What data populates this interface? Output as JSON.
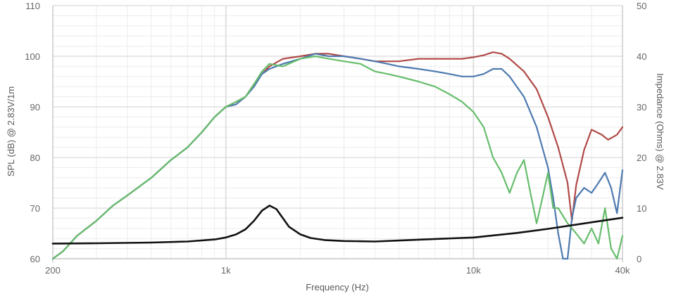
{
  "chart_data": {
    "type": "line",
    "xlabel": "Frequency (Hz)",
    "ylabel": "SPL (dB) @ 2.83V/1m",
    "y2label": "Impedance (Ohms) @ 2.83V",
    "x_scale": "log",
    "xlim": [
      200,
      40000
    ],
    "ylim": [
      60,
      110
    ],
    "y2lim": [
      0,
      50
    ],
    "grid": true,
    "legend": "none",
    "x_ticks": [
      {
        "value": 200,
        "label": "200"
      },
      {
        "value": 1000,
        "label": "1k"
      },
      {
        "value": 10000,
        "label": "10k"
      },
      {
        "value": 40000,
        "label": "40k"
      }
    ],
    "y_ticks": [
      "60",
      "70",
      "80",
      "90",
      "100",
      "110"
    ],
    "y2_ticks": [
      "0",
      "10",
      "20",
      "30",
      "40",
      "50"
    ],
    "colors": {
      "red": "#b04a48",
      "blue": "#4d7aaf",
      "green": "#66bd6c",
      "impedance": "#111111",
      "grid_major": "#d9d9d9",
      "grid_minor": "#ececec",
      "axis": "#bfbfbf"
    },
    "series": [
      {
        "color": "red",
        "axis": "left",
        "x": [
          200,
          220,
          250,
          300,
          350,
          400,
          500,
          600,
          700,
          800,
          900,
          1000,
          1100,
          1200,
          1300,
          1400,
          1500,
          1700,
          2000,
          2300,
          2600,
          3000,
          3500,
          4000,
          4500,
          5000,
          6000,
          7000,
          8000,
          9000,
          10000,
          11000,
          12000,
          13000,
          14000,
          16000,
          18000,
          20000,
          22000,
          24000,
          25000,
          26000,
          28000,
          30000,
          33000,
          35000,
          38000,
          40000
        ],
        "y": [
          59.5,
          61.5,
          64.5,
          67.5,
          70.5,
          72.5,
          76,
          79.5,
          82,
          85,
          88,
          90,
          91,
          92,
          94.5,
          96.5,
          98,
          99.5,
          100,
          100.5,
          100.5,
          100,
          99.5,
          99,
          99,
          99,
          99.5,
          99.5,
          99.5,
          99.5,
          99.8,
          100.2,
          100.8,
          100.5,
          99.5,
          97,
          93.5,
          88,
          82,
          75,
          67.5,
          74.5,
          81.5,
          85.5,
          84.5,
          83.5,
          84.5,
          86
        ]
      },
      {
        "color": "blue",
        "axis": "left",
        "x": [
          200,
          220,
          250,
          300,
          350,
          400,
          500,
          600,
          700,
          800,
          900,
          1000,
          1100,
          1200,
          1300,
          1400,
          1500,
          1700,
          2000,
          2300,
          2600,
          3000,
          3500,
          4000,
          4500,
          5000,
          6000,
          7000,
          8000,
          9000,
          10000,
          11000,
          12000,
          13000,
          14000,
          16000,
          18000,
          20000,
          21000,
          22000,
          23000,
          24000,
          25000,
          26000,
          28000,
          30000,
          32000,
          34000,
          36000,
          38000,
          40000
        ],
        "y": [
          59.5,
          61.5,
          64.5,
          67.5,
          70.5,
          72.5,
          76,
          79.5,
          82,
          85,
          88,
          90,
          90.5,
          92,
          94,
          96.5,
          97.5,
          98.5,
          99.5,
          100.5,
          100,
          100,
          99.5,
          99,
          98.5,
          98,
          97.5,
          97,
          96.5,
          96,
          96,
          96.5,
          97.5,
          97.5,
          96,
          92,
          86,
          78,
          72,
          65,
          60,
          60,
          68,
          72,
          74,
          73,
          75,
          77,
          74,
          69,
          77.5
        ]
      },
      {
        "color": "green",
        "axis": "left",
        "x": [
          200,
          220,
          250,
          300,
          350,
          400,
          500,
          600,
          700,
          800,
          900,
          1000,
          1100,
          1200,
          1300,
          1400,
          1500,
          1700,
          2000,
          2300,
          2600,
          3000,
          3500,
          4000,
          4500,
          5000,
          6000,
          7000,
          8000,
          9000,
          10000,
          11000,
          12000,
          13000,
          14000,
          15000,
          16000,
          17000,
          18000,
          19000,
          20000,
          21000,
          22000,
          24000,
          26000,
          28000,
          30000,
          32000,
          34000,
          36000,
          38000,
          40000
        ],
        "y": [
          59.5,
          61.5,
          64.5,
          67.5,
          70.5,
          72.5,
          76,
          79.5,
          82,
          85,
          88,
          90,
          91,
          92,
          94.5,
          97,
          98.5,
          98,
          99.5,
          100,
          99.5,
          99,
          98.5,
          97,
          96.5,
          96,
          95,
          94,
          92.5,
          91,
          89,
          86,
          80,
          77,
          73,
          77,
          79.5,
          73,
          67,
          72,
          77,
          70,
          70,
          67,
          65,
          63,
          66,
          63,
          70,
          62,
          60,
          64.5
        ]
      },
      {
        "color": "impedance",
        "axis": "right",
        "x": [
          200,
          300,
          500,
          700,
          900,
          1000,
          1100,
          1200,
          1300,
          1400,
          1500,
          1600,
          1700,
          1800,
          2000,
          2200,
          2500,
          3000,
          4000,
          5000,
          7000,
          10000,
          15000,
          20000,
          30000,
          40000
        ],
        "y": [
          3,
          3.05,
          3.2,
          3.4,
          3.8,
          4.2,
          4.8,
          5.8,
          7.5,
          9.5,
          10.5,
          9.8,
          8,
          6.3,
          4.8,
          4.1,
          3.7,
          3.5,
          3.4,
          3.6,
          3.9,
          4.2,
          5.1,
          5.9,
          7.2,
          8.1
        ]
      }
    ]
  }
}
